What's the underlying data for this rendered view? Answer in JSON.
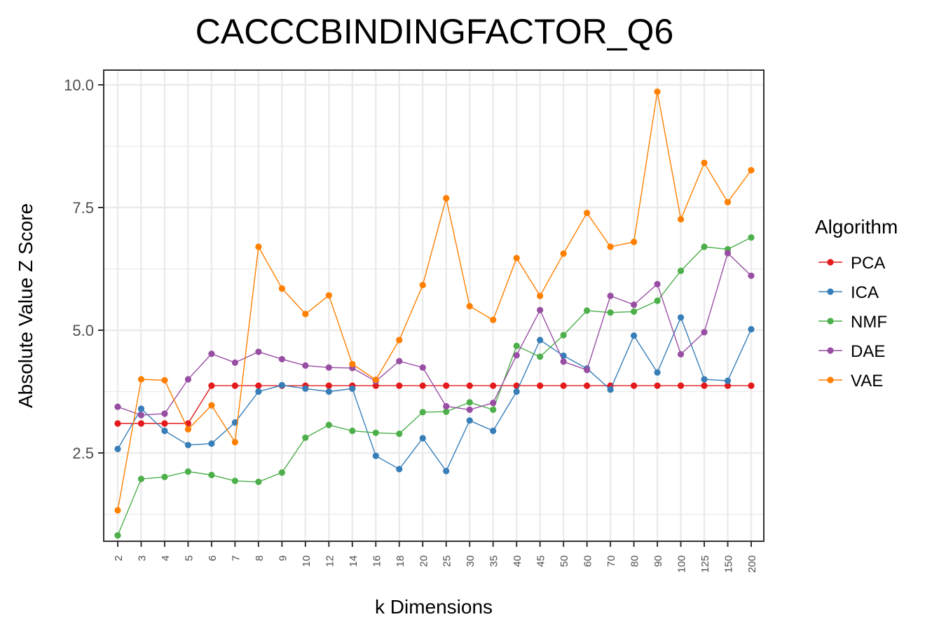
{
  "chart_data": {
    "type": "line",
    "title": "CACCCBINDINGFACTOR_Q6",
    "xlabel": "k Dimensions",
    "ylabel": "Absolute Value Z Score",
    "categories": [
      "2",
      "3",
      "4",
      "5",
      "6",
      "7",
      "8",
      "9",
      "10",
      "12",
      "14",
      "16",
      "18",
      "20",
      "25",
      "30",
      "35",
      "40",
      "45",
      "50",
      "60",
      "70",
      "80",
      "90",
      "100",
      "125",
      "150",
      "200"
    ],
    "yticks": [
      "2.5",
      "5.0",
      "7.5",
      "10.0"
    ],
    "ylim": [
      0.7,
      10.3
    ],
    "grid": true,
    "legend": {
      "title": "Algorithm",
      "placement": "right"
    },
    "series": [
      {
        "name": "PCA",
        "color": "#e41a1c",
        "values": [
          3.1,
          3.1,
          3.1,
          3.1,
          3.87,
          3.87,
          3.87,
          3.87,
          3.87,
          3.87,
          3.87,
          3.87,
          3.87,
          3.87,
          3.87,
          3.87,
          3.87,
          3.87,
          3.87,
          3.87,
          3.87,
          3.87,
          3.87,
          3.87,
          3.87,
          3.87,
          3.87,
          3.87
        ]
      },
      {
        "name": "ICA",
        "color": "#377eb8",
        "values": [
          2.58,
          3.4,
          2.95,
          2.66,
          2.69,
          3.12,
          3.75,
          3.88,
          3.81,
          3.75,
          3.81,
          2.44,
          2.17,
          2.8,
          2.13,
          3.16,
          2.95,
          3.75,
          4.8,
          4.48,
          4.22,
          3.79,
          4.89,
          4.14,
          5.26,
          4.0,
          3.97,
          5.02
        ]
      },
      {
        "name": "NMF",
        "color": "#4daf4a",
        "values": [
          0.82,
          1.97,
          2.01,
          2.12,
          2.05,
          1.93,
          1.91,
          2.1,
          2.81,
          3.07,
          2.95,
          2.91,
          2.89,
          3.33,
          3.34,
          3.53,
          3.38,
          4.68,
          4.46,
          4.9,
          5.4,
          5.36,
          5.38,
          5.6,
          6.21,
          6.7,
          6.65,
          6.89
        ]
      },
      {
        "name": "DAE",
        "color": "#984ea3",
        "values": [
          3.44,
          3.27,
          3.3,
          4.0,
          4.52,
          4.34,
          4.56,
          4.41,
          4.28,
          4.24,
          4.23,
          3.96,
          4.37,
          4.24,
          3.45,
          3.38,
          3.52,
          4.49,
          5.41,
          4.36,
          4.19,
          5.7,
          5.52,
          5.94,
          4.51,
          4.96,
          6.57,
          6.11
        ]
      },
      {
        "name": "VAE",
        "color": "#ff7f00",
        "values": [
          1.33,
          4.0,
          3.98,
          2.98,
          3.47,
          2.72,
          6.7,
          5.85,
          5.33,
          5.71,
          4.31,
          3.99,
          4.8,
          5.92,
          7.69,
          5.49,
          5.21,
          6.47,
          5.7,
          6.56,
          7.39,
          6.7,
          6.8,
          9.86,
          7.26,
          8.41,
          7.61,
          8.26
        ]
      }
    ]
  }
}
